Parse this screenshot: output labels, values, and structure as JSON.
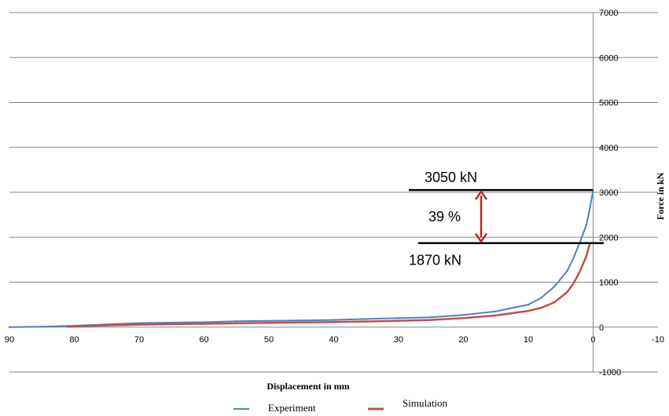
{
  "chart_data": {
    "type": "line",
    "xlabel": "Displacement in mm",
    "ylabel": "Force in kN",
    "xlim": [
      90,
      -10
    ],
    "ylim": [
      -1000,
      7000
    ],
    "x_ticks": [
      "90",
      "80",
      "70",
      "60",
      "50",
      "40",
      "30",
      "20",
      "10",
      "0",
      "-10"
    ],
    "y_ticks": [
      "-1000",
      "0",
      "1000",
      "2000",
      "3000",
      "4000",
      "5000",
      "6000",
      "7000"
    ],
    "grid": "horizontal",
    "legend_position": "bottom",
    "series": [
      {
        "name": "Experiment",
        "color": "#4f81bd",
        "x": [
          90,
          85,
          80,
          75,
          70,
          65,
          60,
          55,
          50,
          45,
          40,
          35,
          30,
          25,
          20,
          15,
          10,
          8,
          6,
          4,
          3,
          2,
          1,
          0.5,
          0
        ],
        "y": [
          0,
          10,
          30,
          60,
          90,
          100,
          110,
          130,
          140,
          150,
          160,
          180,
          200,
          220,
          270,
          350,
          500,
          650,
          900,
          1250,
          1550,
          1900,
          2300,
          2650,
          3050
        ]
      },
      {
        "name": "Simulation",
        "color": "#c0504d",
        "x": [
          81,
          75,
          70,
          65,
          60,
          55,
          50,
          45,
          40,
          35,
          30,
          25,
          20,
          15,
          10,
          8,
          6,
          4,
          3,
          2,
          1,
          0.5
        ],
        "y": [
          10,
          40,
          55,
          65,
          75,
          85,
          95,
          105,
          115,
          125,
          140,
          160,
          200,
          260,
          360,
          430,
          550,
          780,
          980,
          1250,
          1600,
          1870
        ]
      }
    ],
    "annotations": {
      "upper_label": "3050 kN",
      "lower_label": "1870 kN",
      "diff_label": "39 %",
      "upper_value": 3050,
      "lower_value": 1870
    }
  }
}
